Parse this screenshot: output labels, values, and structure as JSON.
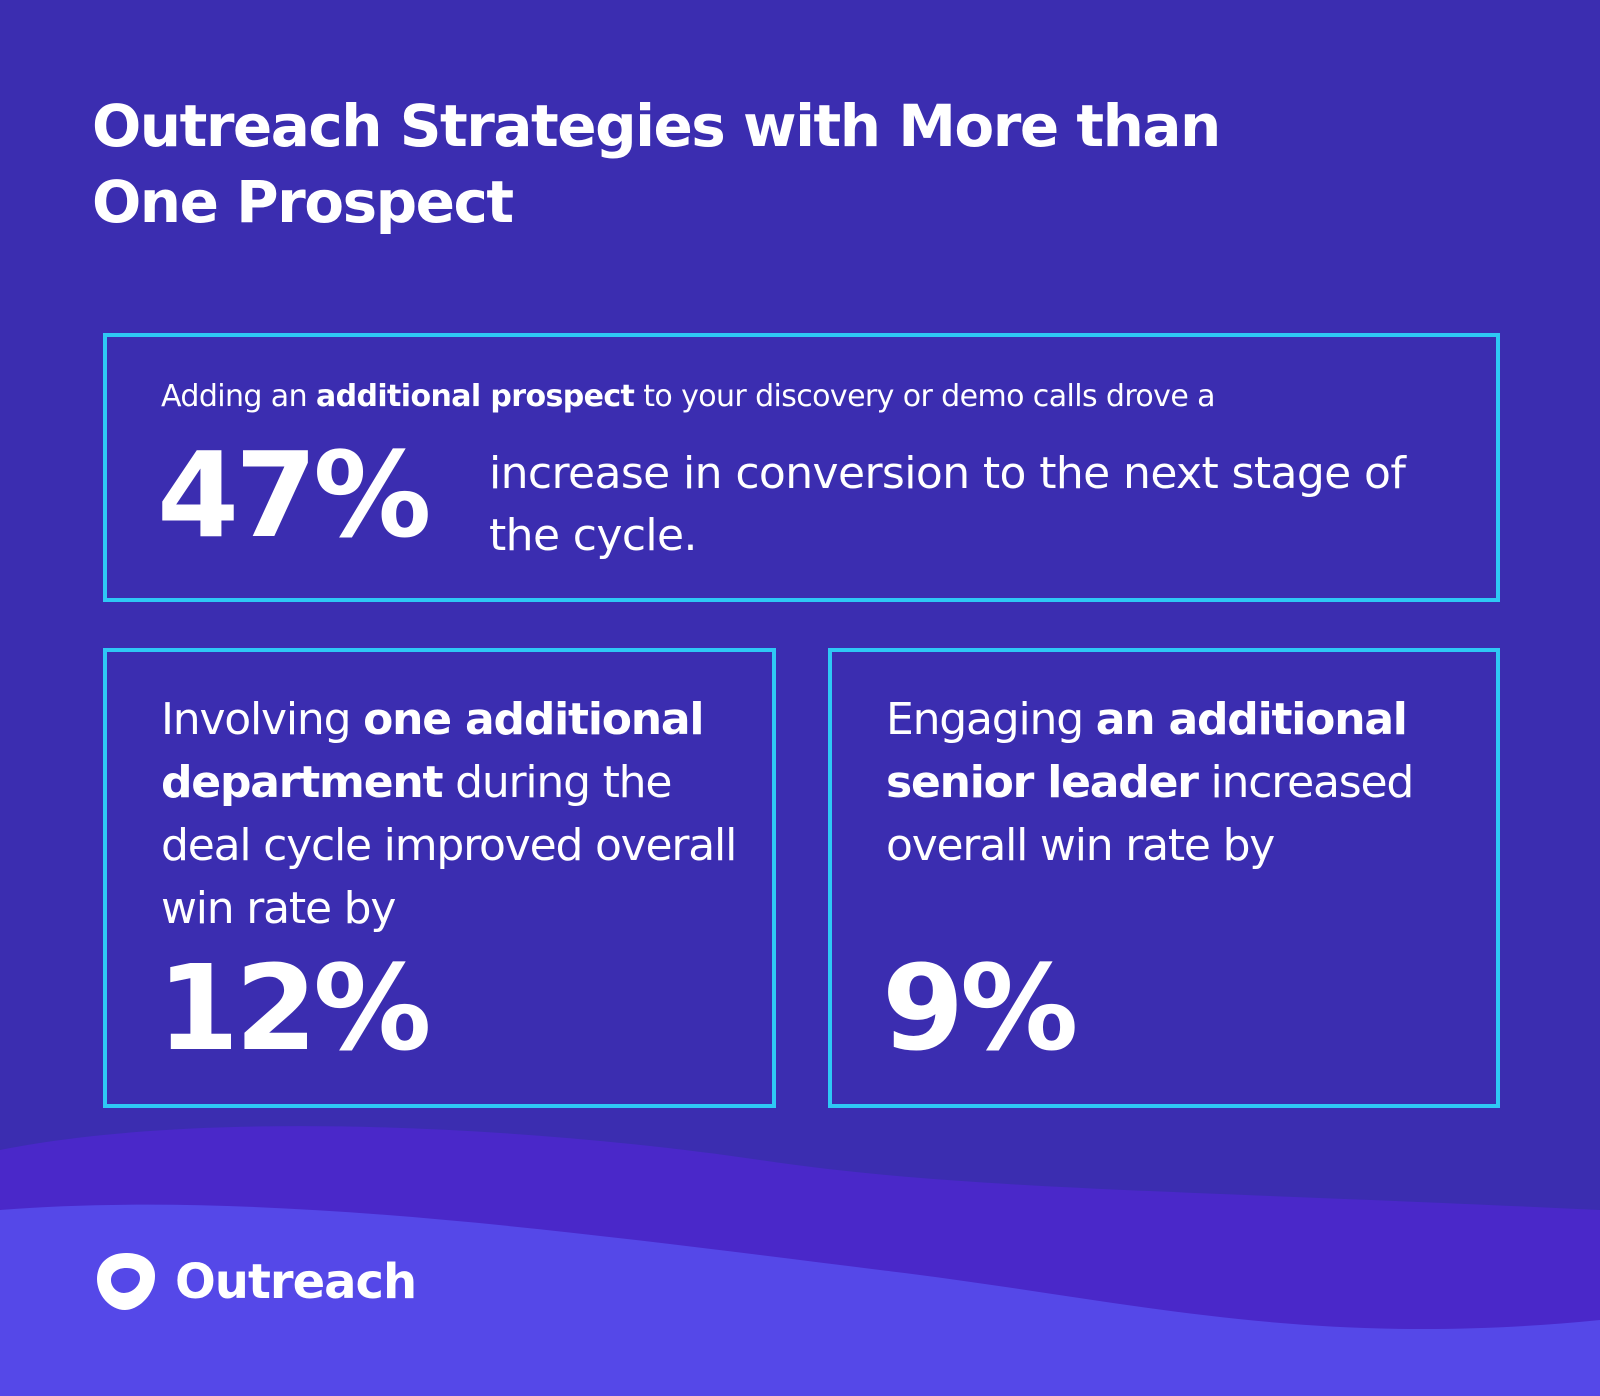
{
  "title_line1": "Outreach Strategies with More than",
  "title_line2": "One Prospect",
  "stat_top": {
    "intro_pre": "Adding an ",
    "intro_bold": "additional prospect",
    "intro_post": " to your discovery or demo calls drove a",
    "value": "47%",
    "description": "increase in conversion to the next stage of the cycle."
  },
  "stat_left": {
    "pre": "Involving ",
    "bold": "one additional department",
    "post": " during the deal cycle improved overall win rate by",
    "value": "12%"
  },
  "stat_right": {
    "pre": "Engaging ",
    "bold": "an additional senior leader",
    "post": " increased overall win rate by",
    "value": "9%"
  },
  "logo": {
    "text": "Outreach",
    "icon": "outreach-logo-icon"
  },
  "colors": {
    "background": "#3b2db0",
    "border": "#2ec8f5",
    "wave_back": "#4a28c9",
    "wave_front": "#5548e8",
    "text": "#ffffff"
  }
}
